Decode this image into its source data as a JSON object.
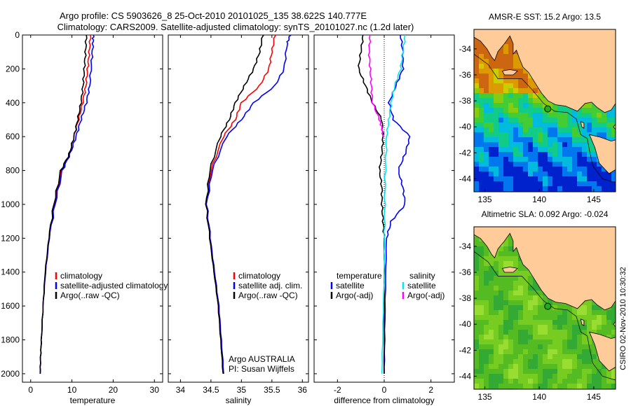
{
  "title": {
    "line1": "Argo profile: CS 5903626_8 25-Oct-2010 20101025_135 38.622S 140.777E",
    "line2": "Climatology: CARS2009. Satellite-adjusted climatology: synTS_20101027.nc (1.2d later)"
  },
  "side_stamp": "CSIRO 02-Nov-2010 10:30:32",
  "credit": {
    "line1": "Argo AUSTRALIA",
    "line2": "PI: Susan Wijffels"
  },
  "colors": {
    "climatology": "#ff0000",
    "satellite": "#0000ff",
    "argo": "#000000",
    "salinity_satellite": "#00e5ee",
    "salinity_argo": "#ff00ff",
    "land": "#ffcc99",
    "marker": "#22aa22"
  },
  "chart_data": [
    {
      "type": "line",
      "panel": "temperature",
      "xlabel": "temperature",
      "ylabel": "",
      "xlim": [
        -2,
        32
      ],
      "ylim": [
        2050,
        0
      ],
      "xticks": [
        0,
        10,
        20,
        30
      ],
      "yticks": [
        0,
        200,
        400,
        600,
        800,
        1000,
        1200,
        1400,
        1600,
        1800,
        2000
      ],
      "legend_position": "lower-right",
      "legend": [
        "climatology",
        "satellite-adjusted climatology",
        "Argo(..raw -QC)"
      ],
      "series": [
        {
          "name": "climatology",
          "color": "#ff0000",
          "x": [
            14.5,
            14.2,
            13.8,
            13.4,
            12.6,
            11.6,
            10.5,
            9.4,
            7.5,
            5.8,
            4.5,
            3.6,
            3.0,
            2.6,
            2.4,
            2.3
          ],
          "y": [
            0,
            100,
            200,
            300,
            400,
            500,
            600,
            700,
            800,
            1000,
            1200,
            1400,
            1600,
            1800,
            1900,
            2000
          ]
        },
        {
          "name": "satellite-adjusted climatology",
          "color": "#0000ff",
          "x": [
            15.2,
            15.1,
            14.8,
            14.3,
            13.5,
            12.2,
            11.0,
            9.6,
            7.7,
            5.9,
            4.5,
            3.6,
            3.0,
            2.6,
            2.4,
            2.3
          ],
          "y": [
            0,
            50,
            150,
            300,
            400,
            500,
            600,
            700,
            800,
            1000,
            1200,
            1400,
            1600,
            1800,
            1900,
            2000
          ]
        },
        {
          "name": "Argo(..raw -QC)",
          "color": "#000000",
          "x": [
            13.5,
            13.3,
            13.0,
            12.7,
            12.2,
            11.4,
            10.5,
            9.4,
            7.3,
            5.6,
            4.4,
            3.5,
            3.0,
            2.6,
            2.4,
            2.3
          ],
          "y": [
            0,
            100,
            200,
            300,
            400,
            500,
            600,
            700,
            800,
            1000,
            1200,
            1400,
            1600,
            1800,
            1900,
            2000
          ]
        }
      ]
    },
    {
      "type": "line",
      "panel": "salinity",
      "xlabel": "salinity",
      "ylabel": "",
      "xlim": [
        33.8,
        36.1
      ],
      "ylim": [
        2050,
        0
      ],
      "xticks": [
        34,
        34.5,
        35,
        35.5,
        36
      ],
      "yticks": [
        0,
        200,
        400,
        600,
        800,
        1000,
        1200,
        1400,
        1600,
        1800,
        2000
      ],
      "legend_position": "lower-right",
      "legend": [
        "climatology",
        "satellite adj. clim.",
        "Argo(..raw -QC)"
      ],
      "series": [
        {
          "name": "climatology",
          "color": "#ff0000",
          "x": [
            35.55,
            35.5,
            35.45,
            35.3,
            35.0,
            34.9,
            34.7,
            34.5,
            34.42,
            34.48,
            34.55,
            34.62,
            34.66,
            34.7
          ],
          "y": [
            0,
            100,
            200,
            300,
            400,
            500,
            600,
            800,
            1000,
            1200,
            1400,
            1600,
            1800,
            2000
          ]
        },
        {
          "name": "satellite adj. clim.",
          "color": "#0000ff",
          "x": [
            35.8,
            35.75,
            35.7,
            35.55,
            35.2,
            35.0,
            34.75,
            34.52,
            34.43,
            34.49,
            34.56,
            34.63,
            34.67,
            34.71
          ],
          "y": [
            0,
            50,
            200,
            300,
            400,
            500,
            600,
            800,
            1000,
            1200,
            1400,
            1600,
            1800,
            2000
          ]
        },
        {
          "name": "Argo(..raw -QC)",
          "color": "#000000",
          "x": [
            35.35,
            35.3,
            35.2,
            35.05,
            34.9,
            34.8,
            34.65,
            34.48,
            34.42,
            34.48,
            34.55,
            34.62,
            34.66,
            34.7
          ],
          "y": [
            0,
            100,
            200,
            300,
            400,
            500,
            600,
            800,
            1000,
            1200,
            1400,
            1600,
            1800,
            2000
          ]
        }
      ]
    },
    {
      "type": "line",
      "panel": "difference",
      "xlabel": "difference from climatology",
      "ylabel": "",
      "xlim": [
        -3,
        3
      ],
      "ylim": [
        2050,
        0
      ],
      "xticks": [
        -2,
        0,
        2
      ],
      "yticks": [
        0,
        200,
        400,
        600,
        800,
        1000,
        1200,
        1400,
        1600,
        1800,
        2000
      ],
      "legend_position": "lower-center",
      "legend_headers": [
        "temperature",
        "salinity"
      ],
      "legend": [
        "satellite",
        "Argo(-adj)",
        "satellite",
        "Argo(-adj)"
      ],
      "series": [
        {
          "name": "temperature satellite",
          "color": "#0000ff",
          "x": [
            0.7,
            0.8,
            0.8,
            0.5,
            0.2,
            0.4,
            1.1,
            0.9,
            0.6,
            0.8,
            0.9,
            0.3,
            0.1,
            0.05,
            0.02,
            0.0
          ],
          "y": [
            0,
            100,
            200,
            300,
            400,
            500,
            600,
            700,
            800,
            900,
            1000,
            1100,
            1200,
            1500,
            1800,
            2000
          ]
        },
        {
          "name": "temperature Argo(-adj)",
          "color": "#000000",
          "x": [
            -0.9,
            -1.0,
            -1.1,
            -0.8,
            -0.5,
            -0.1,
            -0.05,
            -0.1,
            -0.2,
            -0.1,
            -0.1,
            -0.05,
            0.0,
            0.0,
            0.0
          ],
          "y": [
            0,
            100,
            200,
            300,
            400,
            500,
            600,
            700,
            800,
            900,
            1000,
            1100,
            1200,
            1600,
            2000
          ]
        },
        {
          "name": "salinity satellite",
          "color": "#00e5ee",
          "x": [
            0.9,
            0.8,
            0.7,
            0.45,
            0.3,
            0.2,
            0.1,
            0.05,
            0.02,
            0.01,
            0.0,
            -0.05,
            -0.1
          ],
          "y": [
            0,
            100,
            200,
            300,
            400,
            500,
            600,
            800,
            1000,
            1200,
            1400,
            1700,
            2000
          ]
        },
        {
          "name": "salinity Argo(-adj)",
          "color": "#ff00ff",
          "x": [
            -0.6,
            -0.65,
            -0.6,
            -0.55,
            -0.5,
            -0.2,
            -0.1,
            -0.05
          ],
          "y": [
            0,
            100,
            200,
            300,
            400,
            500,
            550,
            600
          ]
        }
      ]
    },
    {
      "type": "heatmap",
      "panel": "map-sst",
      "title": "AMSR-E SST: 15.2 Argo: 13.5",
      "xlim": [
        134,
        147
      ],
      "ylim": [
        -45,
        -32.5
      ],
      "xticks": [
        135,
        140,
        145
      ],
      "yticks": [
        -34,
        -36,
        -38,
        -40,
        -42,
        -44
      ],
      "argo_position": {
        "lon": 140.777,
        "lat": -38.622
      },
      "palette": [
        "#0022cc",
        "#0077ee",
        "#00bbdd",
        "#11cc88",
        "#44cc33",
        "#88cc11",
        "#cccc00",
        "#dd9900",
        "#cc6611"
      ]
    },
    {
      "type": "heatmap",
      "panel": "map-sla",
      "title": "Altimetric SLA: 0.092 Argo: -0.024",
      "xlim": [
        134,
        147
      ],
      "ylim": [
        -45,
        -32.5
      ],
      "xticks": [
        135,
        140,
        145
      ],
      "yticks": [
        -34,
        -36,
        -38,
        -40,
        -42,
        -44
      ],
      "argo_position": {
        "lon": 140.777,
        "lat": -38.622
      },
      "palette": [
        "#33aa33",
        "#55bb22",
        "#77cc22",
        "#99dd33",
        "#bbee44"
      ]
    }
  ]
}
